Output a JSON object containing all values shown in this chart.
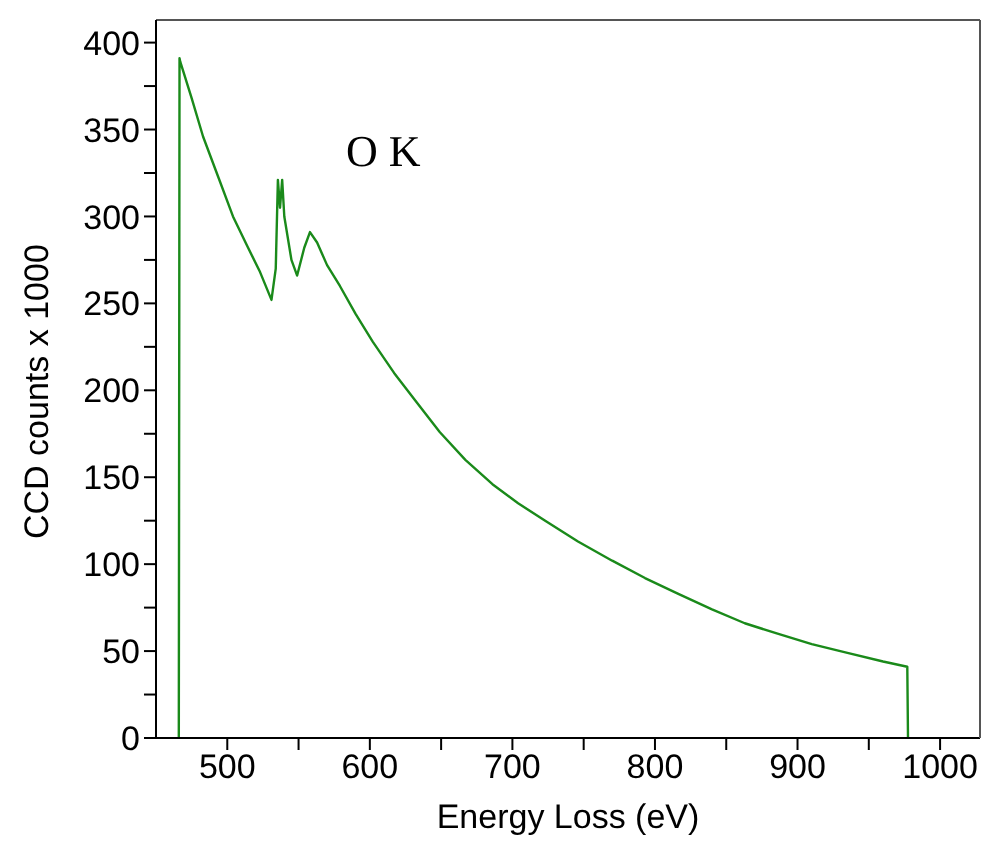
{
  "chart_data": {
    "type": "line",
    "xlabel": "Energy Loss (eV)",
    "ylabel": "CCD counts  x 1000",
    "annotations": [
      "O K"
    ],
    "xlim": [
      450,
      1028
    ],
    "ylim": [
      0,
      413
    ],
    "xticks": [
      500,
      {
        "value": 550,
        "label": null
      },
      600,
      {
        "value": 650,
        "label": null
      },
      700,
      {
        "value": 750,
        "label": null
      },
      800,
      {
        "value": 850,
        "label": null
      },
      900,
      {
        "value": 950,
        "label": null
      },
      1000
    ],
    "yticks": [
      0,
      {
        "value": 25,
        "label": null
      },
      50,
      {
        "value": 75,
        "label": null
      },
      100,
      {
        "value": 125,
        "label": null
      },
      150,
      {
        "value": 175,
        "label": null
      },
      200,
      {
        "value": 225,
        "label": null
      },
      250,
      {
        "value": 275,
        "label": null
      },
      300,
      {
        "value": 325,
        "label": null
      },
      350,
      {
        "value": 375,
        "label": null
      },
      400
    ],
    "marker": "none",
    "line_style": "solid",
    "series": [
      {
        "color": "#1a8a1a",
        "x": [
          466,
          466.5,
          467,
          475,
          483,
          494,
          504,
          514,
          523,
          531,
          534,
          535.5,
          537,
          538.5,
          540,
          545,
          549,
          554,
          558,
          563,
          570,
          579,
          590,
          602,
          617,
          632,
          649,
          667,
          686,
          704,
          723,
          746,
          770,
          793,
          816,
          840,
          863,
          886,
          910,
          935,
          960,
          977,
          977.5
        ],
        "values": [
          0,
          391,
          389,
          368,
          346,
          322,
          300,
          283,
          268,
          252,
          270,
          321,
          305,
          321,
          300,
          275,
          266,
          282,
          291,
          285,
          272,
          260,
          244,
          228,
          210,
          194,
          176,
          160,
          146,
          135,
          125,
          113,
          102,
          92,
          83,
          74,
          66,
          60,
          54,
          49,
          44,
          41,
          0
        ]
      }
    ]
  }
}
